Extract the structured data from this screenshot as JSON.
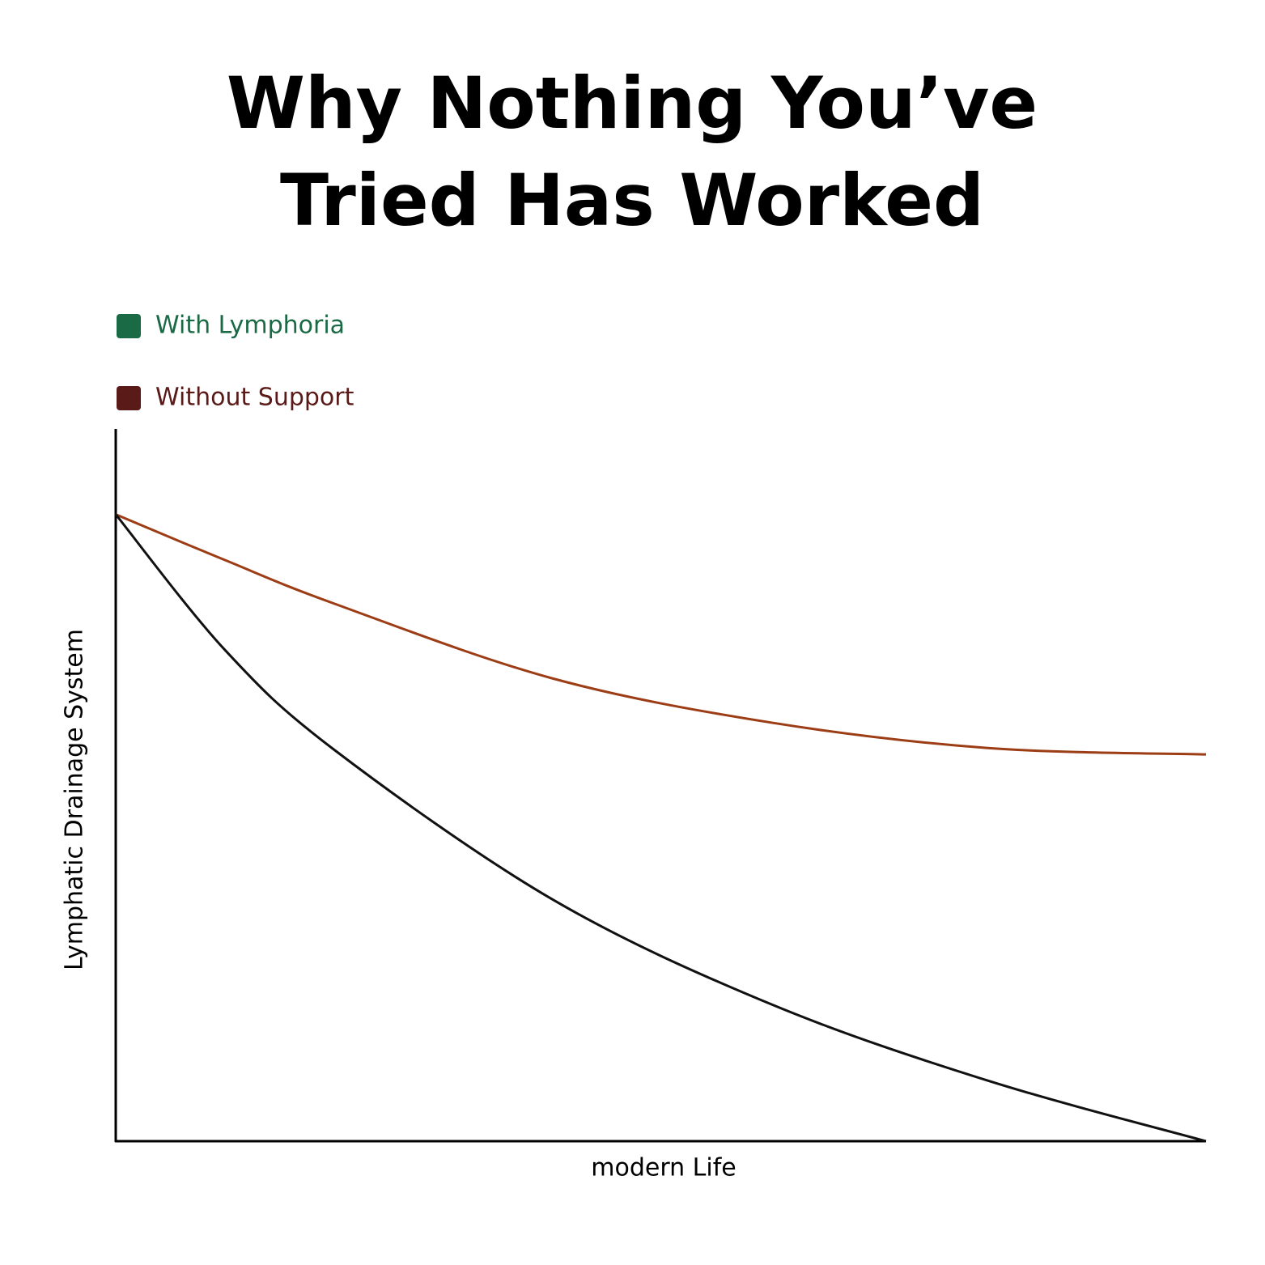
{
  "chart_data": {
    "type": "line",
    "title": "Why Nothing You’ve Tried Has Worked",
    "x_label": "modern Life",
    "y_label": "Lymphatic Drainage System",
    "x": [
      0,
      10,
      20,
      40,
      60,
      80,
      100
    ],
    "xlim": [
      0,
      100
    ],
    "ylim": [
      0,
      100
    ],
    "series": [
      {
        "name": "With Lymphoria",
        "color": "#9c3d16",
        "legend_color": "#1a6b45",
        "values": [
          88,
          81.6,
          75.5,
          65,
          58.8,
          55.2,
          54.3
        ]
      },
      {
        "name": "Without Support",
        "color": "#111111",
        "legend_color": "#5a1a18",
        "values": [
          88,
          69,
          55,
          34,
          19.3,
          8.5,
          0
        ]
      }
    ]
  }
}
